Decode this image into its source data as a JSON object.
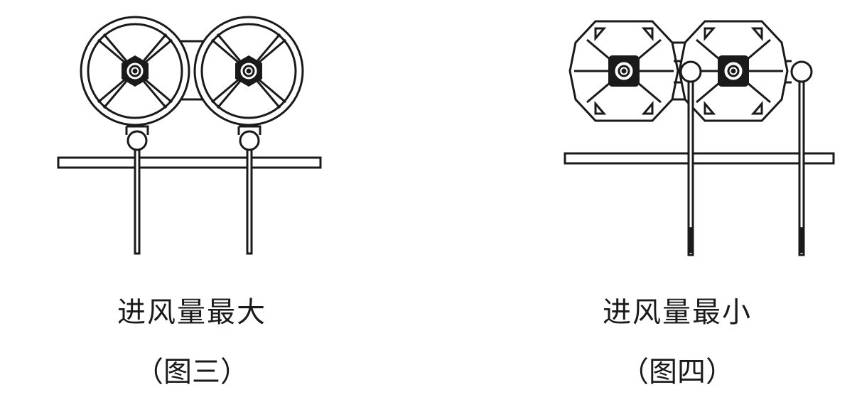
{
  "panels": [
    {
      "caption": "进风量最大",
      "figure_label": "（图三）",
      "damper_state": "open",
      "blade_angle_deg": 45
    },
    {
      "caption": "进风量最小",
      "figure_label": "（图四）",
      "damper_state": "closed",
      "blade_angle_deg": 0
    }
  ],
  "colors": {
    "stroke": "#1a1a1a",
    "fill": "#ffffff"
  }
}
